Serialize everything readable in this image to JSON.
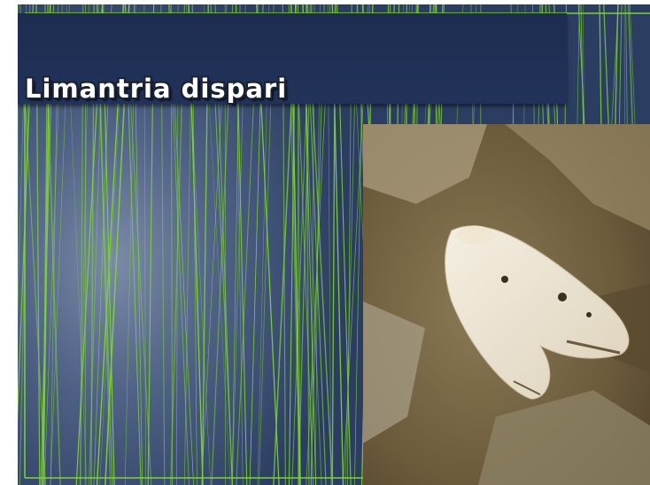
{
  "title": "Limantria dispari"
}
